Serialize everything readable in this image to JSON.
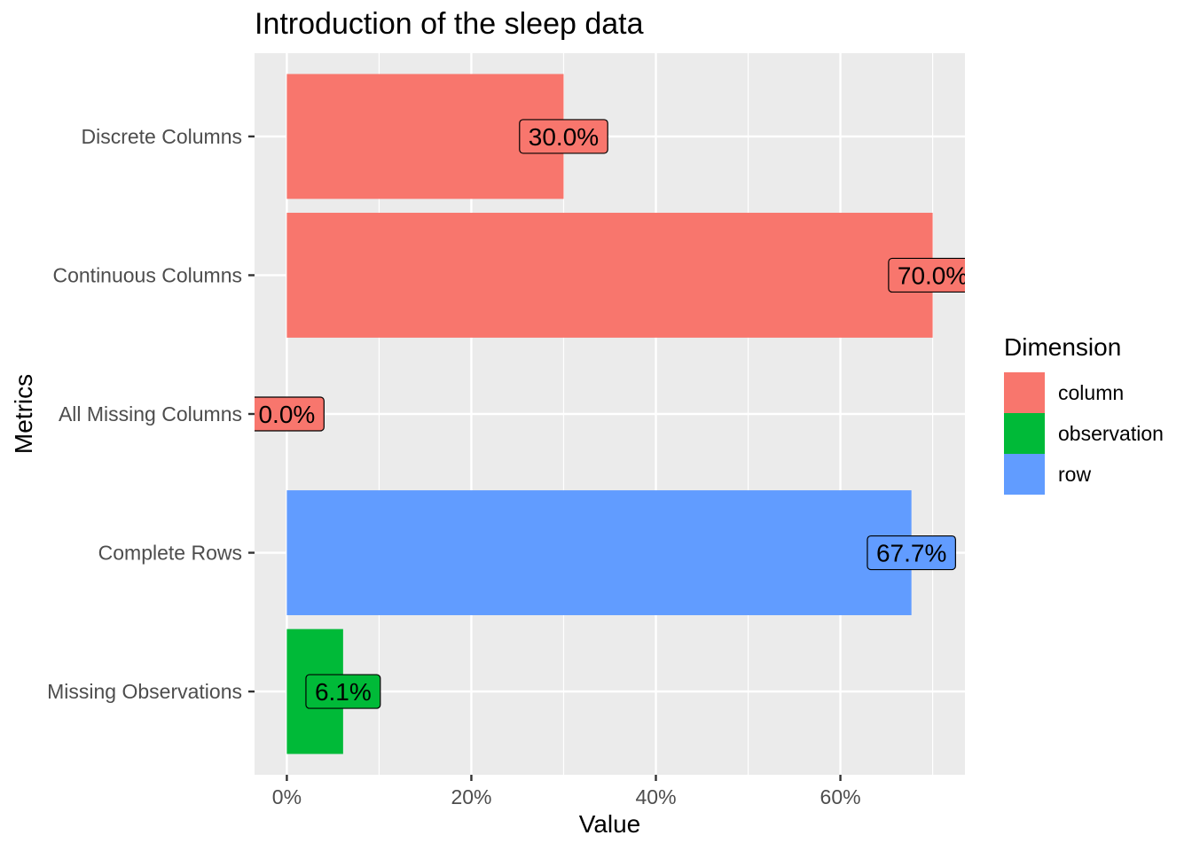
{
  "chart_data": {
    "type": "bar",
    "orientation": "horizontal",
    "title": "Introduction of the sleep data",
    "xlabel": "Value",
    "ylabel": "Metrics",
    "xlim": [
      -3.5,
      73.5
    ],
    "x_ticks": [
      {
        "value": 0,
        "label": "0%"
      },
      {
        "value": 20,
        "label": "20%"
      },
      {
        "value": 40,
        "label": "40%"
      },
      {
        "value": 60,
        "label": "60%"
      }
    ],
    "categories": [
      "Discrete Columns",
      "Continuous Columns",
      "All Missing Columns",
      "Complete Rows",
      "Missing Observations"
    ],
    "bars": [
      {
        "category": "Discrete Columns",
        "value": 30.0,
        "label": "30.0%",
        "dimension": "column"
      },
      {
        "category": "Continuous Columns",
        "value": 70.0,
        "label": "70.0%",
        "dimension": "column"
      },
      {
        "category": "All Missing Columns",
        "value": 0.0,
        "label": "0.0%",
        "dimension": "column"
      },
      {
        "category": "Complete Rows",
        "value": 67.7,
        "label": "67.7%",
        "dimension": "row"
      },
      {
        "category": "Missing Observations",
        "value": 6.1,
        "label": "6.1%",
        "dimension": "observation"
      }
    ],
    "legend": {
      "title": "Dimension",
      "position": "right",
      "items": [
        {
          "name": "column",
          "color": "#F8766D"
        },
        {
          "name": "observation",
          "color": "#00BA38"
        },
        {
          "name": "row",
          "color": "#619CFF"
        }
      ]
    },
    "grid": true,
    "panel_background": "#EBEBEB"
  }
}
